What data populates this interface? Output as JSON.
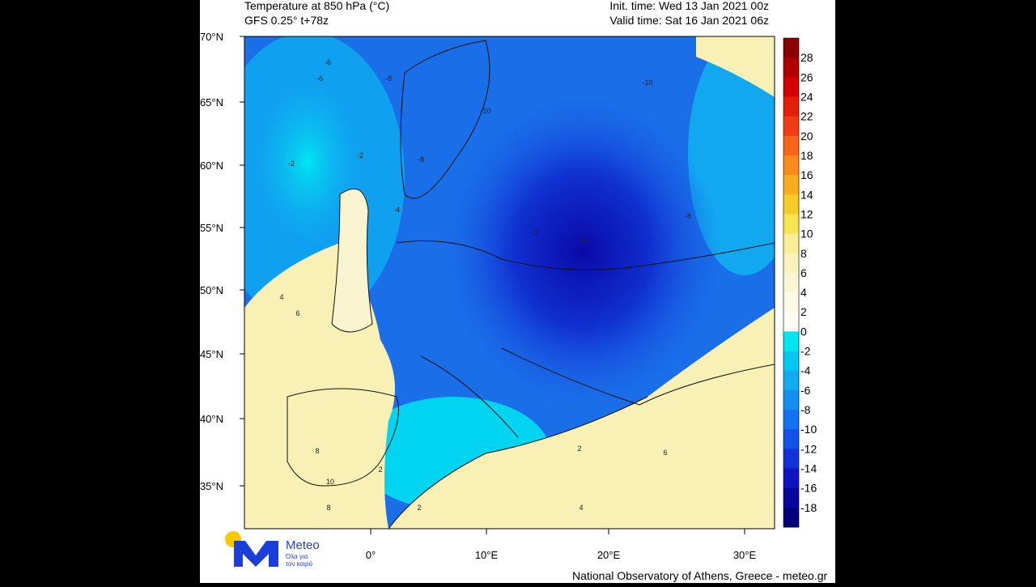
{
  "header": {
    "title": "Temperature at 850 hPa (°C)",
    "model": "GFS 0.25° t+78z",
    "init_time": "Init. time: Wed 13 Jan 2021 00z",
    "valid_time": "Valid time: Sat 16 Jan 2021 06z"
  },
  "map": {
    "lat_labels": [
      "70°N",
      "65°N",
      "60°N",
      "55°N",
      "50°N",
      "45°N",
      "40°N",
      "35°N"
    ],
    "lon_labels": [
      "0°",
      "10°E",
      "20°E",
      "30°E"
    ],
    "contour_labels": [
      -6,
      -8,
      -6,
      -2,
      -4,
      -8,
      -10,
      -12,
      -10,
      -8,
      -16,
      -2,
      4,
      6,
      8,
      10,
      8,
      2,
      2,
      4,
      6,
      2
    ]
  },
  "colorbar": {
    "ticks": [
      28,
      26,
      24,
      22,
      20,
      18,
      16,
      14,
      12,
      10,
      8,
      6,
      4,
      2,
      0,
      -2,
      -4,
      -6,
      -8,
      -10,
      -12,
      -14,
      -16,
      -18
    ],
    "colors": [
      "#8a0000",
      "#b00000",
      "#d20000",
      "#e51e0a",
      "#f03c14",
      "#f7641a",
      "#f88a1e",
      "#f8ac20",
      "#f8cc28",
      "#f8e450",
      "#f8ee98",
      "#f8f2bc",
      "#faf5d4",
      "#fcf9e6",
      "#fdfcf3",
      "#00e6f0",
      "#00c8f0",
      "#12aaf0",
      "#1290f0",
      "#1272f0",
      "#1252e6",
      "#1232d8",
      "#0e14c2",
      "#0808a0",
      "#00007a"
    ]
  },
  "footer": {
    "credit": "National Observatory of Athens, Greece - meteo.gr",
    "logo_name": "Meteo",
    "logo_tagline_1": "Όλα για",
    "logo_tagline_2": "τον καιρό"
  }
}
